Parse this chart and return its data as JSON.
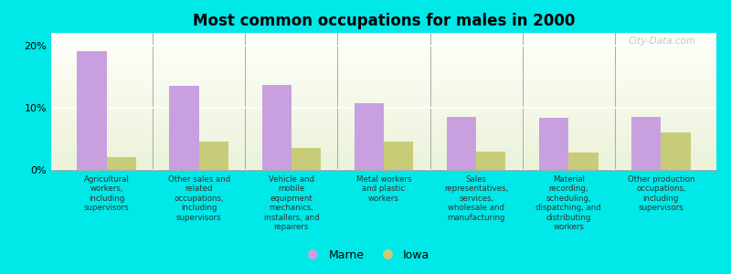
{
  "title": "Most common occupations for males in 2000",
  "categories": [
    "Agricultural\nworkers,\nincluding\nsupervisors",
    "Other sales and\nrelated\noccupations,\nincluding\nsupervisors",
    "Vehicle and\nmobile\nequipment\nmechanics,\ninstallers, and\nrepairers",
    "Metal workers\nand plastic\nworkers",
    "Sales\nrepresentatives,\nservices,\nwholesale and\nmanufacturing",
    "Material\nrecording,\nscheduling,\ndispatching, and\ndistributing\nworkers",
    "Other production\noccupations,\nincluding\nsupervisors"
  ],
  "marne_values": [
    19.0,
    13.5,
    13.7,
    10.7,
    8.5,
    8.4,
    8.5
  ],
  "iowa_values": [
    2.0,
    4.5,
    3.5,
    4.5,
    3.0,
    2.8,
    6.0
  ],
  "marne_color": "#c8a0e0",
  "iowa_color": "#c8cc78",
  "background_color": "#00e8e8",
  "ylim": [
    0,
    22
  ],
  "yticks": [
    0,
    10,
    20
  ],
  "ytick_labels": [
    "0%",
    "10%",
    "20%"
  ],
  "bar_width": 0.32,
  "legend_labels": [
    "Marne",
    "Iowa"
  ],
  "watermark": "City-Data.com"
}
